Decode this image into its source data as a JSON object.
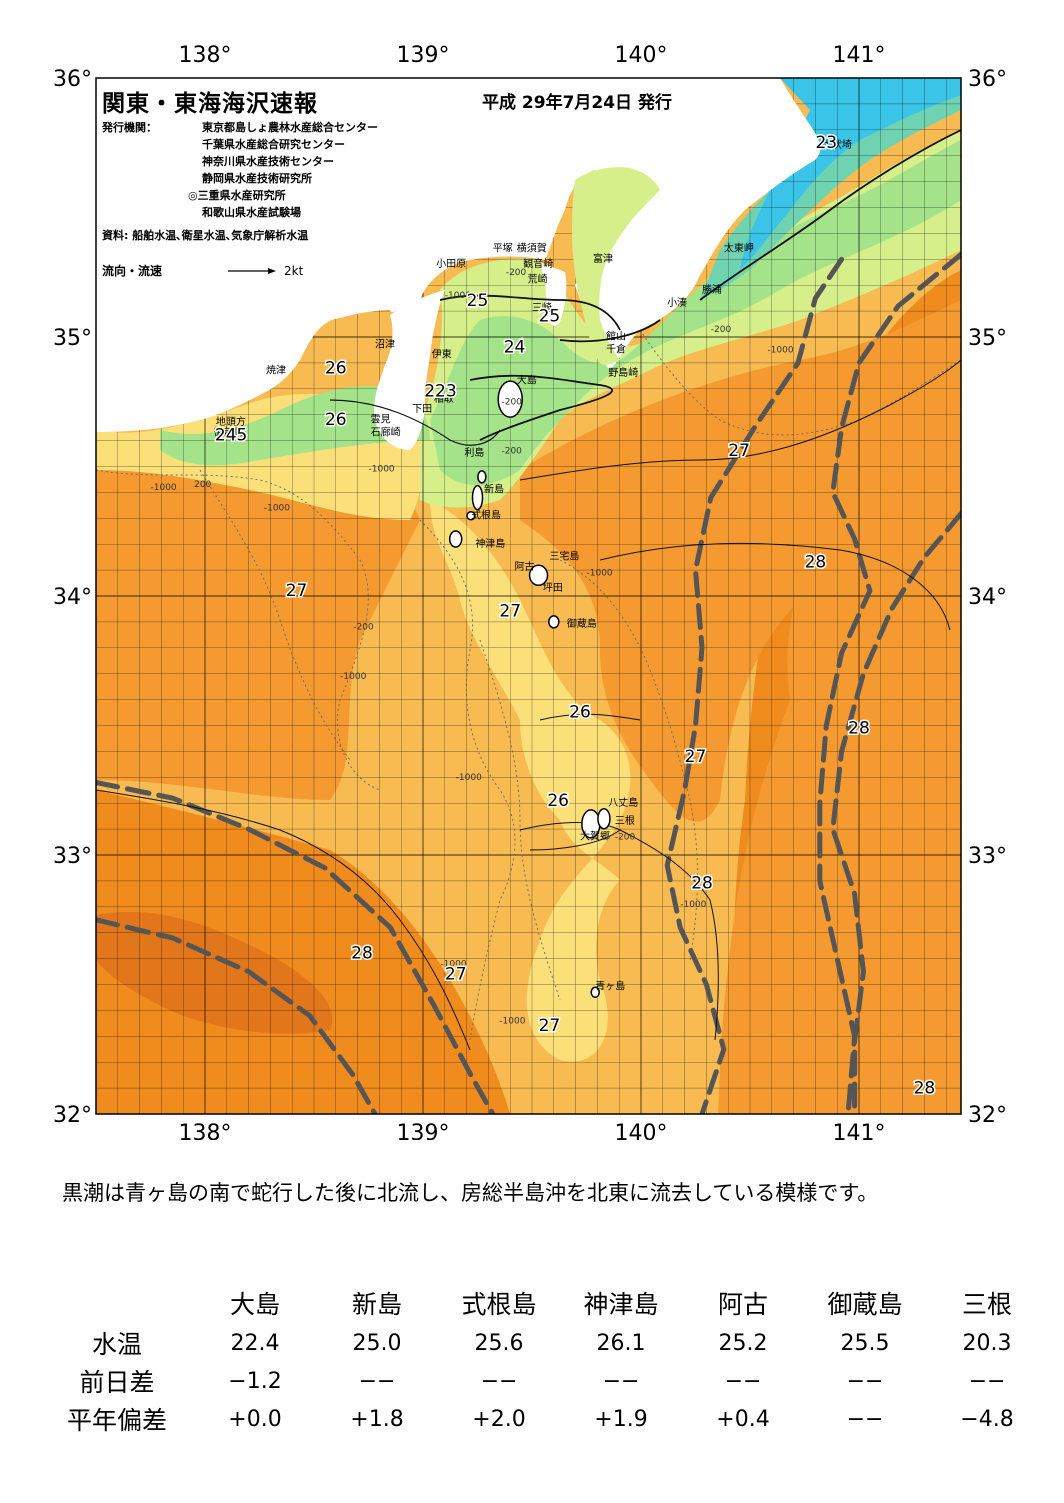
{
  "header": {
    "title": "関東・東海海沢速報",
    "date": "平成 29年7月24日 発行",
    "publisher_label": "発行機関：",
    "publishers": [
      "東京都島しょ農林水産総合センター",
      "千葉県水産総合研究センター",
      "神奈川県水産技術センター",
      "静岡県水産技術研究所",
      "◎三重県水産研究所",
      "和歌山県水産試験場"
    ],
    "source": "資料: 船舶水温､衛星水温､気象庁解析水温",
    "flow_label": "流向・流速",
    "flow_scale": "2kt"
  },
  "axes": {
    "lon_ticks": [
      "138°",
      "139°",
      "140°",
      "141°"
    ],
    "lat_ticks": [
      "36°",
      "35°",
      "34°",
      "33°",
      "32°"
    ]
  },
  "colors": {
    "sea_28": "#f08c1e",
    "sea_warm": "#f49a30",
    "sea_27": "#f7bb52",
    "sea_26": "#fbe07a",
    "sea_25": "#d7ef8a",
    "sea_24": "#a5e38a",
    "sea_23": "#6fd3b2",
    "sea_22": "#39c4e8",
    "land": "#ffffff",
    "kuroshio_axis": "#555555"
  },
  "places": [
    {
      "name": "犬吠埼",
      "lon": 140.83,
      "lat": 35.73
    },
    {
      "name": "太東岬",
      "lon": 140.38,
      "lat": 35.33
    },
    {
      "name": "勝浦",
      "lon": 140.28,
      "lat": 35.17
    },
    {
      "name": "小湊",
      "lon": 140.12,
      "lat": 35.12
    },
    {
      "name": "富津",
      "lon": 139.78,
      "lat": 35.29
    },
    {
      "name": "平塚",
      "lon": 139.32,
      "lat": 35.33
    },
    {
      "name": "横須賀",
      "lon": 139.43,
      "lat": 35.33
    },
    {
      "name": "観音崎",
      "lon": 139.46,
      "lat": 35.27
    },
    {
      "name": "荒崎",
      "lon": 139.48,
      "lat": 35.21
    },
    {
      "name": "小田原",
      "lon": 139.06,
      "lat": 35.27
    },
    {
      "name": "三崎",
      "lon": 139.5,
      "lat": 35.1
    },
    {
      "name": "館山",
      "lon": 139.84,
      "lat": 34.99
    },
    {
      "name": "千倉",
      "lon": 139.84,
      "lat": 34.94
    },
    {
      "name": "野島崎",
      "lon": 139.85,
      "lat": 34.85
    },
    {
      "name": "沼津",
      "lon": 138.78,
      "lat": 34.96
    },
    {
      "name": "伊東",
      "lon": 139.04,
      "lat": 34.92
    },
    {
      "name": "焼津",
      "lon": 138.28,
      "lat": 34.86
    },
    {
      "name": "稲取",
      "lon": 139.05,
      "lat": 34.75
    },
    {
      "name": "下田",
      "lon": 138.95,
      "lat": 34.71
    },
    {
      "name": "雲見",
      "lon": 138.76,
      "lat": 34.67
    },
    {
      "name": "石廊崎",
      "lon": 138.76,
      "lat": 34.62
    },
    {
      "name": "地頭方",
      "lon": 138.05,
      "lat": 34.66
    },
    {
      "name": "御前崎",
      "lon": 138.04,
      "lat": 34.62
    },
    {
      "name": "大島",
      "lon": 139.43,
      "lat": 34.82
    },
    {
      "name": "利島",
      "lon": 139.19,
      "lat": 34.54
    },
    {
      "name": "新島",
      "lon": 139.28,
      "lat": 34.4
    },
    {
      "name": "式根島",
      "lon": 139.22,
      "lat": 34.3
    },
    {
      "name": "神津島",
      "lon": 139.24,
      "lat": 34.19
    },
    {
      "name": "三宅島",
      "lon": 139.58,
      "lat": 34.14
    },
    {
      "name": "阿古",
      "lon": 139.42,
      "lat": 34.1
    },
    {
      "name": "坪田",
      "lon": 139.55,
      "lat": 34.02
    },
    {
      "name": "御蔵島",
      "lon": 139.66,
      "lat": 33.88
    },
    {
      "name": "八丈島",
      "lon": 139.85,
      "lat": 33.19
    },
    {
      "name": "三根",
      "lon": 139.88,
      "lat": 33.12
    },
    {
      "name": "大賀郷",
      "lon": 139.72,
      "lat": 33.06
    },
    {
      "name": "青ヶ島",
      "lon": 139.79,
      "lat": 32.48
    }
  ],
  "isotherm_labels": [
    {
      "text": "23",
      "lon": 140.85,
      "lat": 35.73
    },
    {
      "text": "25",
      "lon": 139.25,
      "lat": 35.12
    },
    {
      "text": "25",
      "lon": 139.58,
      "lat": 35.06
    },
    {
      "text": "24",
      "lon": 139.42,
      "lat": 34.94
    },
    {
      "text": "26",
      "lon": 138.6,
      "lat": 34.86
    },
    {
      "text": "223",
      "lon": 139.08,
      "lat": 34.77
    },
    {
      "text": "26",
      "lon": 138.6,
      "lat": 34.66
    },
    {
      "text": "245",
      "lon": 138.12,
      "lat": 34.6
    },
    {
      "text": "27",
      "lon": 140.45,
      "lat": 34.54
    },
    {
      "text": "28",
      "lon": 140.8,
      "lat": 34.11
    },
    {
      "text": "27",
      "lon": 138.42,
      "lat": 34.0
    },
    {
      "text": "27",
      "lon": 139.4,
      "lat": 33.92
    },
    {
      "text": "26",
      "lon": 139.72,
      "lat": 33.53
    },
    {
      "text": "28",
      "lon": 141.0,
      "lat": 33.47
    },
    {
      "text": "27",
      "lon": 140.25,
      "lat": 33.36
    },
    {
      "text": "26",
      "lon": 139.62,
      "lat": 33.19
    },
    {
      "text": "28",
      "lon": 140.28,
      "lat": 32.87
    },
    {
      "text": "28",
      "lon": 138.72,
      "lat": 32.6
    },
    {
      "text": "27",
      "lon": 139.15,
      "lat": 32.52
    },
    {
      "text": "27",
      "lon": 139.58,
      "lat": 32.32
    },
    {
      "text": "28",
      "lon": 141.3,
      "lat": 32.08
    }
  ],
  "depth_labels": [
    {
      "text": "-200",
      "lon": 139.38,
      "lat": 35.24
    },
    {
      "text": "-200",
      "lon": 140.32,
      "lat": 35.02
    },
    {
      "text": "-1000",
      "lon": 140.58,
      "lat": 34.94
    },
    {
      "text": "-1000",
      "lon": 139.1,
      "lat": 35.15
    },
    {
      "text": "-200",
      "lon": 139.36,
      "lat": 34.74
    },
    {
      "text": "-200",
      "lon": 139.36,
      "lat": 34.55
    },
    {
      "text": "-1000",
      "lon": 137.75,
      "lat": 34.41
    },
    {
      "text": "200",
      "lon": 137.95,
      "lat": 34.42
    },
    {
      "text": "-1000",
      "lon": 138.27,
      "lat": 34.33
    },
    {
      "text": "-1000",
      "lon": 138.75,
      "lat": 34.48
    },
    {
      "text": "-200",
      "lon": 138.68,
      "lat": 33.87
    },
    {
      "text": "-1000",
      "lon": 138.62,
      "lat": 33.68
    },
    {
      "text": "-1000",
      "lon": 139.75,
      "lat": 34.08
    },
    {
      "text": "-1000",
      "lon": 139.15,
      "lat": 33.29
    },
    {
      "text": "-200",
      "lon": 139.88,
      "lat": 33.06
    },
    {
      "text": "-1000",
      "lon": 140.18,
      "lat": 32.8
    },
    {
      "text": "-1000",
      "lon": 139.08,
      "lat": 32.57
    },
    {
      "text": "-1000",
      "lon": 139.35,
      "lat": 32.35
    }
  ],
  "kuroshio_axes": [
    [
      [
        140.92,
        35.3
      ],
      [
        140.8,
        35.15
      ],
      [
        140.72,
        34.9
      ],
      [
        140.52,
        34.65
      ],
      [
        140.32,
        34.38
      ],
      [
        140.25,
        34.1
      ],
      [
        140.28,
        33.8
      ],
      [
        140.25,
        33.5
      ],
      [
        140.2,
        33.25
      ],
      [
        140.12,
        32.96
      ],
      [
        140.18,
        32.72
      ],
      [
        140.3,
        32.5
      ],
      [
        140.38,
        32.25
      ],
      [
        140.28,
        32.0
      ]
    ],
    [
      [
        141.47,
        35.32
      ],
      [
        141.18,
        35.12
      ],
      [
        141.0,
        34.9
      ],
      [
        140.92,
        34.65
      ],
      [
        140.88,
        34.4
      ],
      [
        140.98,
        34.22
      ],
      [
        141.05,
        34.02
      ],
      [
        140.92,
        33.78
      ],
      [
        140.85,
        33.5
      ],
      [
        140.82,
        33.2
      ],
      [
        140.82,
        32.9
      ],
      [
        140.9,
        32.6
      ],
      [
        140.98,
        32.3
      ],
      [
        140.95,
        32.0
      ]
    ],
    [
      [
        141.47,
        34.32
      ],
      [
        141.3,
        34.15
      ],
      [
        141.15,
        33.95
      ],
      [
        141.02,
        33.7
      ],
      [
        140.92,
        33.4
      ],
      [
        140.88,
        33.1
      ],
      [
        140.98,
        32.85
      ],
      [
        141.02,
        32.55
      ],
      [
        140.98,
        32.28
      ],
      [
        140.98,
        32.0
      ]
    ],
    [
      [
        137.5,
        33.28
      ],
      [
        137.85,
        33.22
      ],
      [
        138.2,
        33.1
      ],
      [
        138.55,
        32.95
      ],
      [
        138.85,
        32.72
      ],
      [
        139.05,
        32.42
      ],
      [
        139.22,
        32.15
      ],
      [
        139.32,
        32.0
      ]
    ],
    [
      [
        137.5,
        32.75
      ],
      [
        137.85,
        32.68
      ],
      [
        138.2,
        32.55
      ],
      [
        138.48,
        32.38
      ],
      [
        138.68,
        32.15
      ],
      [
        138.78,
        32.0
      ]
    ]
  ],
  "comment": "黒潮は青ヶ島の南で蛇行した後に北流し、房総半島沖を北東に流去している模様です。",
  "table": {
    "columns": [
      "大島",
      "新島",
      "式根島",
      "神津島",
      "阿古",
      "御蔵島",
      "三根"
    ],
    "rows": [
      {
        "label": "水温",
        "values": [
          "22.4",
          "25.0",
          "25.6",
          "26.1",
          "25.2",
          "25.5",
          "20.3"
        ]
      },
      {
        "label": "前日差",
        "values": [
          "−1.2",
          "−−",
          "−−",
          "−−",
          "−−",
          "−−",
          "−−"
        ]
      },
      {
        "label": "平年偏差",
        "values": [
          "+0.0",
          "+1.8",
          "+2.0",
          "+1.9",
          "+0.4",
          "−−",
          "−4.8"
        ]
      }
    ]
  }
}
